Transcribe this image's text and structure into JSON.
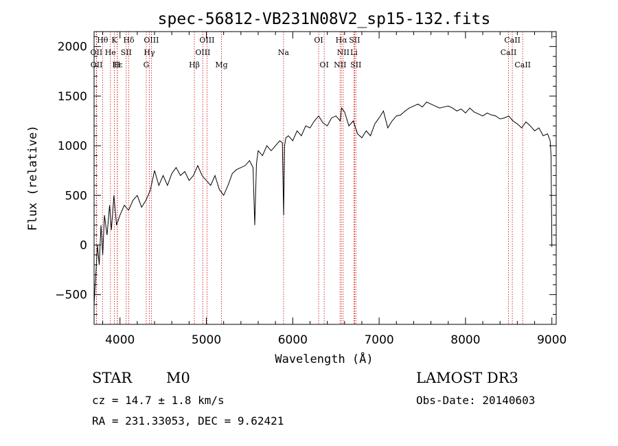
{
  "chart_data": {
    "type": "line",
    "title": "spec-56812-VB231N08V2_sp15-132.fits",
    "xlabel": "Wavelength (Å)",
    "ylabel": "Flux (relative)",
    "xlim": [
      3700,
      9050
    ],
    "ylim": [
      -800,
      2150
    ],
    "xticks": [
      4000,
      5000,
      6000,
      7000,
      8000,
      9000
    ],
    "yticks": [
      -500,
      0,
      500,
      1000,
      1500,
      2000
    ],
    "line_color": "#000000",
    "marker_color": "#cc0000",
    "series": [
      {
        "x": [
          3700,
          3720,
          3740,
          3760,
          3780,
          3800,
          3820,
          3850,
          3880,
          3900,
          3930,
          3960,
          4000,
          4050,
          4100,
          4150,
          4200,
          4250,
          4300,
          4350,
          4400,
          4450,
          4500,
          4550,
          4600,
          4650,
          4700,
          4750,
          4800,
          4850,
          4900,
          4950,
          5000,
          5050,
          5100,
          5150,
          5200,
          5250,
          5300,
          5350,
          5400,
          5450,
          5500,
          5540,
          5560,
          5580,
          5600,
          5650,
          5700,
          5750,
          5800,
          5850,
          5880,
          5895,
          5905,
          5920,
          5950,
          6000,
          6050,
          6100,
          6150,
          6200,
          6250,
          6300,
          6350,
          6400,
          6450,
          6500,
          6550,
          6565,
          6600,
          6650,
          6700,
          6750,
          6800,
          6850,
          6900,
          6950,
          7000,
          7050,
          7100,
          7150,
          7200,
          7250,
          7300,
          7350,
          7400,
          7450,
          7500,
          7550,
          7600,
          7650,
          7700,
          7750,
          7800,
          7850,
          7900,
          7950,
          8000,
          8050,
          8100,
          8150,
          8200,
          8250,
          8300,
          8350,
          8400,
          8450,
          8500,
          8550,
          8600,
          8650,
          8700,
          8750,
          8800,
          8850,
          8900,
          8950,
          8980,
          8990,
          9000
        ],
        "y": [
          -600,
          -300,
          0,
          -200,
          200,
          -100,
          300,
          100,
          400,
          150,
          500,
          200,
          300,
          400,
          350,
          450,
          500,
          380,
          450,
          550,
          750,
          600,
          700,
          600,
          720,
          780,
          700,
          740,
          650,
          700,
          800,
          700,
          650,
          600,
          700,
          560,
          500,
          600,
          720,
          760,
          780,
          800,
          850,
          780,
          200,
          820,
          950,
          900,
          1000,
          950,
          1000,
          1050,
          1030,
          300,
          1000,
          1080,
          1100,
          1050,
          1150,
          1100,
          1200,
          1180,
          1250,
          1300,
          1230,
          1200,
          1280,
          1300,
          1250,
          1380,
          1340,
          1200,
          1250,
          1120,
          1080,
          1150,
          1100,
          1220,
          1280,
          1350,
          1180,
          1250,
          1300,
          1310,
          1350,
          1380,
          1400,
          1420,
          1390,
          1440,
          1420,
          1400,
          1380,
          1390,
          1400,
          1380,
          1350,
          1370,
          1330,
          1380,
          1340,
          1320,
          1300,
          1330,
          1310,
          1300,
          1270,
          1280,
          1300,
          1250,
          1220,
          1180,
          1240,
          1200,
          1150,
          1180,
          1100,
          1120,
          1050,
          900,
          -20
        ]
      }
    ],
    "line_markers": [
      {
        "label": "Hθ",
        "x": 3798,
        "row": 0
      },
      {
        "label": "K",
        "x": 3934,
        "row": 0
      },
      {
        "label": "Hδ",
        "x": 4102,
        "row": 0
      },
      {
        "label": "OIII",
        "x": 4363,
        "row": 0
      },
      {
        "label": "OIII",
        "x": 5007,
        "row": 0
      },
      {
        "label": "OI",
        "x": 6300,
        "row": 0
      },
      {
        "label": "Hα",
        "x": 6563,
        "row": 0
      },
      {
        "label": "SII",
        "x": 6716,
        "row": 0
      },
      {
        "label": "CaII",
        "x": 8542,
        "row": 0
      },
      {
        "label": "OII",
        "x": 3727,
        "row": 1
      },
      {
        "label": "He",
        "x": 3889,
        "row": 1
      },
      {
        "label": "SII",
        "x": 4072,
        "row": 1
      },
      {
        "label": "Hγ",
        "x": 4340,
        "row": 1
      },
      {
        "label": "OIII",
        "x": 4959,
        "row": 1
      },
      {
        "label": "Na",
        "x": 5893,
        "row": 1
      },
      {
        "label": "NII",
        "x": 6584,
        "row": 1
      },
      {
        "label": "Li",
        "x": 6708,
        "row": 1
      },
      {
        "label": "CaII",
        "x": 8498,
        "row": 1
      },
      {
        "label": "OII",
        "x": 3729,
        "row": 2
      },
      {
        "label": "Hε",
        "x": 3970,
        "row": 2
      },
      {
        "label": "H",
        "x": 3968,
        "row": 2
      },
      {
        "label": "G",
        "x": 4304,
        "row": 2
      },
      {
        "label": "Hβ",
        "x": 4861,
        "row": 2
      },
      {
        "label": "Mg",
        "x": 5175,
        "row": 2
      },
      {
        "label": "OI",
        "x": 6364,
        "row": 2
      },
      {
        "label": "NII",
        "x": 6548,
        "row": 2
      },
      {
        "label": "SII",
        "x": 6731,
        "row": 2
      },
      {
        "label": "CaII",
        "x": 8662,
        "row": 2
      }
    ]
  },
  "info": {
    "class": "STAR",
    "subclass": "M0",
    "survey": "LAMOST DR3",
    "cz": "cz = 14.7 ± 1.8 km/s",
    "obs_date": "Obs-Date: 20140603",
    "radec": "RA = 231.33053, DEC =   9.62421"
  }
}
